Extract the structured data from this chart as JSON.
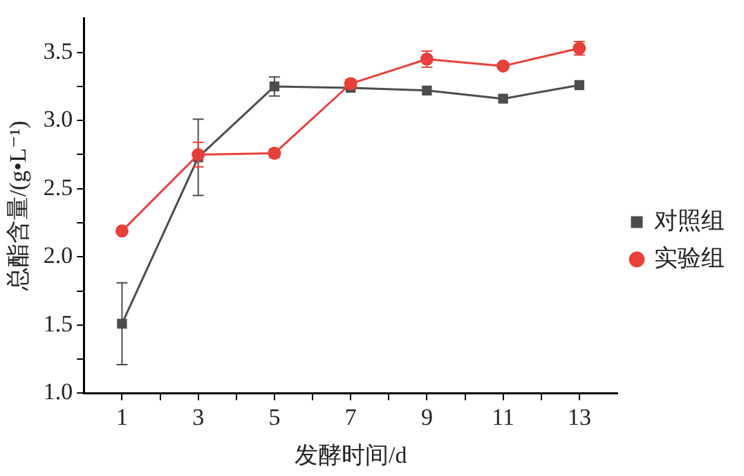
{
  "chart_data": {
    "type": "line",
    "xlabel": "发酵时间/d",
    "ylabel": "总酯含量/(g•L⁻¹)",
    "x": [
      1,
      3,
      5,
      7,
      9,
      11,
      13
    ],
    "xlim": [
      0,
      14
    ],
    "xticks": [
      1,
      {
        "value": 2,
        "label": null
      },
      3,
      {
        "value": 4,
        "label": null
      },
      5,
      {
        "value": 6,
        "label": null
      },
      7,
      {
        "value": 8,
        "label": null
      },
      9,
      {
        "value": 10,
        "label": null
      },
      11,
      {
        "value": 12,
        "label": null
      },
      13
    ],
    "ylim": [
      1.0,
      3.75
    ],
    "yticks": [
      {
        "value": 1,
        "label": "1.0"
      },
      {
        "value": 1.25,
        "label": null
      },
      1.5,
      {
        "value": 1.75,
        "label": null
      },
      {
        "value": 2,
        "label": "2.0"
      },
      {
        "value": 2.25,
        "label": null
      },
      2.5,
      {
        "value": 2.75,
        "label": null
      },
      {
        "value": 3,
        "label": "3.0"
      },
      {
        "value": 3.25,
        "label": null
      },
      3.5
    ],
    "series": [
      {
        "name": "对照组",
        "color": "#4d4d4d",
        "marker": "square",
        "values": [
          1.51,
          2.73,
          3.25,
          3.24,
          3.22,
          3.16,
          3.26
        ],
        "errors": [
          0.3,
          0.28,
          0.07,
          null,
          null,
          null,
          null
        ]
      },
      {
        "name": "实验组",
        "color": "#e8403a",
        "marker": "circle",
        "values": [
          2.19,
          2.75,
          2.76,
          3.27,
          3.45,
          3.4,
          3.53
        ],
        "errors": [
          null,
          0.09,
          0.03,
          0.03,
          0.06,
          null,
          0.05
        ]
      }
    ],
    "grid": false,
    "legend": "right",
    "line_style": "solid"
  }
}
